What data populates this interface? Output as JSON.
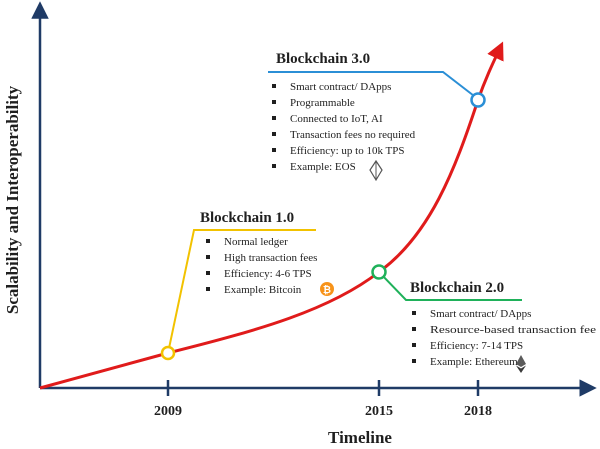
{
  "axes": {
    "x_label": "Timeline",
    "y_label": "Scalability and Interoperability",
    "ticks": [
      "2009",
      "2015",
      "2018"
    ]
  },
  "colors": {
    "axis": "#1f3b66",
    "curve": "#e01b1b",
    "gen1": "#f2c200",
    "gen2": "#1fb15a",
    "gen3": "#2b8fd6"
  },
  "generations": [
    {
      "title": "Blockchain 1.0",
      "items": [
        "Normal ledger",
        "High transaction fees",
        "Efficiency: 4-6 TPS",
        "Example: Bitcoin"
      ],
      "icon": "bitcoin-icon"
    },
    {
      "title": "Blockchain 2.0",
      "items": [
        "Smart contract/ DApps",
        "Resource-based transaction fee",
        "Efficiency: 7-14 TPS",
        "Example: Ethereum"
      ],
      "icon": "ethereum-icon"
    },
    {
      "title": "Blockchain 3.0",
      "items": [
        "Smart contract/ DApps",
        "Programmable",
        "Connected to IoT, AI",
        "Transaction fees no required",
        "Efficiency: up to 10k TPS",
        "Example: EOS"
      ],
      "icon": "eos-icon"
    }
  ]
}
